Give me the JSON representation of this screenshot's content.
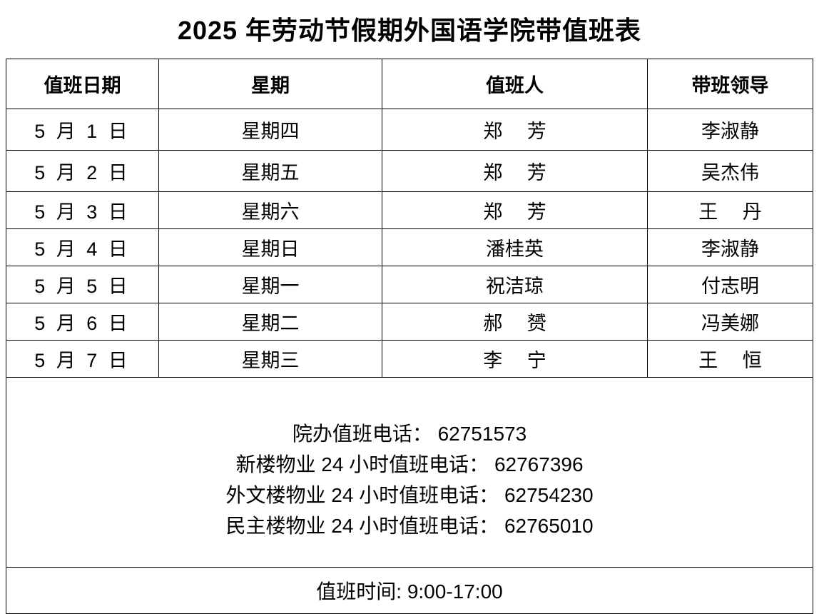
{
  "title": "2025 年劳动节假期外国语学院带值班表",
  "table": {
    "headers": [
      "值班日期",
      "星期",
      "值班人",
      "带班领导"
    ],
    "rows": [
      {
        "date": "5 月 1 日",
        "weekday": "星期四",
        "staff": "郑　 芳",
        "leader": "李淑静"
      },
      {
        "date": "5 月 2 日",
        "weekday": "星期五",
        "staff": "郑　 芳",
        "leader": "吴杰伟"
      },
      {
        "date": "5 月 3 日",
        "weekday": "星期六",
        "staff": "郑　 芳",
        "leader": "王　 丹"
      },
      {
        "date": "5 月 4 日",
        "weekday": "星期日",
        "staff": "潘桂英",
        "leader": "李淑静"
      },
      {
        "date": "5 月 5 日",
        "weekday": "星期一",
        "staff": "祝洁琼",
        "leader": "付志明"
      },
      {
        "date": "5 月 6 日",
        "weekday": "星期二",
        "staff": "郝　 赟",
        "leader": "冯美娜"
      },
      {
        "date": "5 月 7 日",
        "weekday": "星期三",
        "staff": "李　 宁",
        "leader": "王　 恒"
      }
    ]
  },
  "phones": [
    "院办值班电话：  62751573",
    "新楼物业 24 小时值班电话：  62767396",
    "外文楼物业 24 小时值班电话：  62754230",
    "民主楼物业 24 小时值班电话：  62765010"
  ],
  "duty_time": "值班时间: 9:00-17:00"
}
